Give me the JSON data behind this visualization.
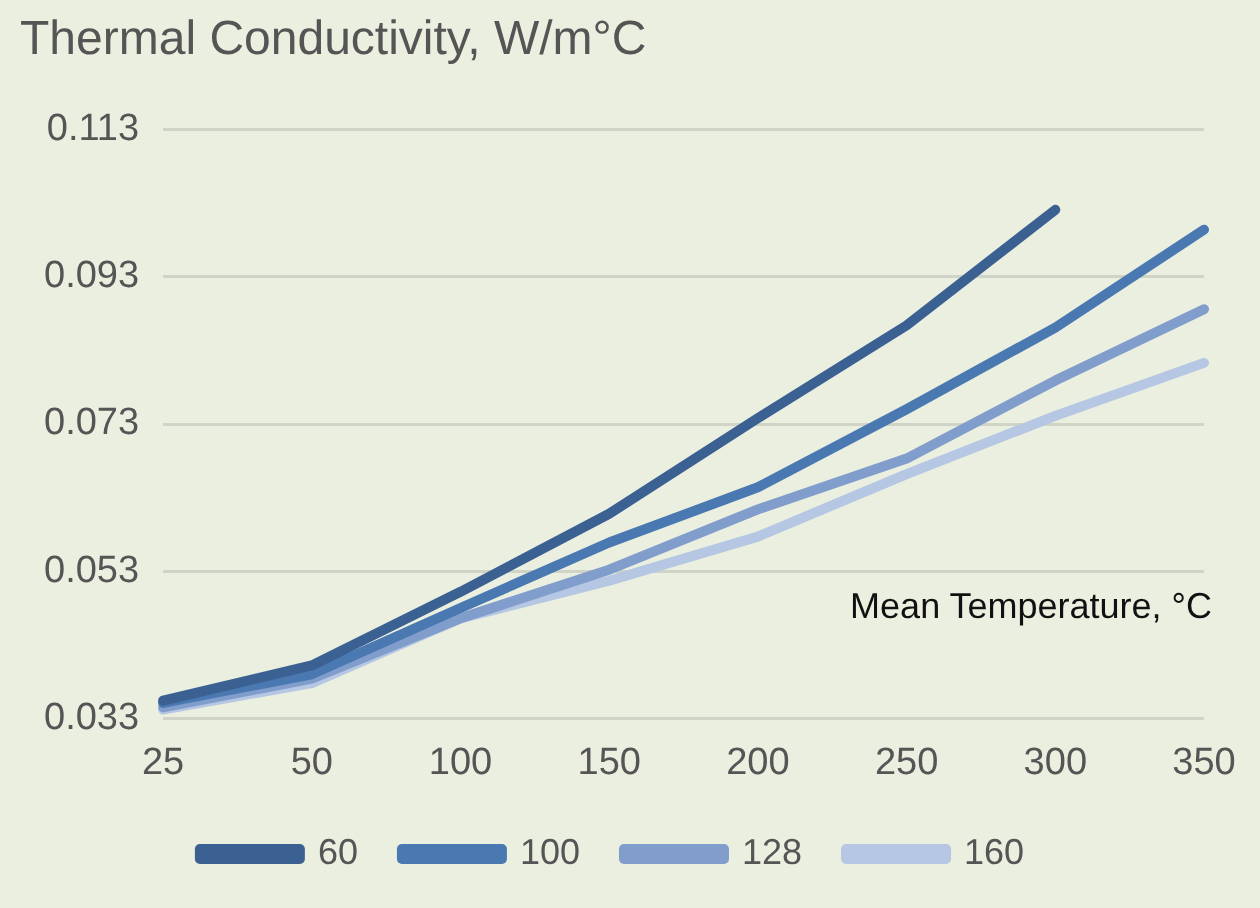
{
  "chart_data": {
    "type": "line",
    "title": "Thermal Conductivity, W/m°C",
    "xlabel": "Mean Temperature, °C",
    "categories": [
      "25",
      "50",
      "100",
      "150",
      "200",
      "250",
      "300",
      "350"
    ],
    "series": [
      {
        "name": "60",
        "color": "#3b6193",
        "values": [
          0.0354,
          0.0402,
          0.0502,
          0.0608,
          0.0738,
          0.0864,
          0.1021,
          null
        ]
      },
      {
        "name": "100",
        "color": "#4a79b2",
        "values": [
          0.0351,
          0.039,
          0.048,
          0.0569,
          0.0644,
          0.075,
          0.0861,
          0.0994
        ]
      },
      {
        "name": "128",
        "color": "#809dcc",
        "values": [
          0.0345,
          0.0384,
          0.0466,
          0.0532,
          0.0614,
          0.0683,
          0.0789,
          0.0886
        ]
      },
      {
        "name": "160",
        "color": "#b5c7e3",
        "values": [
          0.0342,
          0.0378,
          0.0466,
          0.0517,
          0.0577,
          0.0662,
          0.0741,
          0.0813
        ]
      }
    ],
    "ylim": [
      0.033,
      0.113
    ],
    "yticks": [
      0.033,
      0.053,
      0.073,
      0.093,
      0.113
    ],
    "grid": "y",
    "legend": "bottom",
    "marker": "none",
    "line_style": "solid"
  }
}
